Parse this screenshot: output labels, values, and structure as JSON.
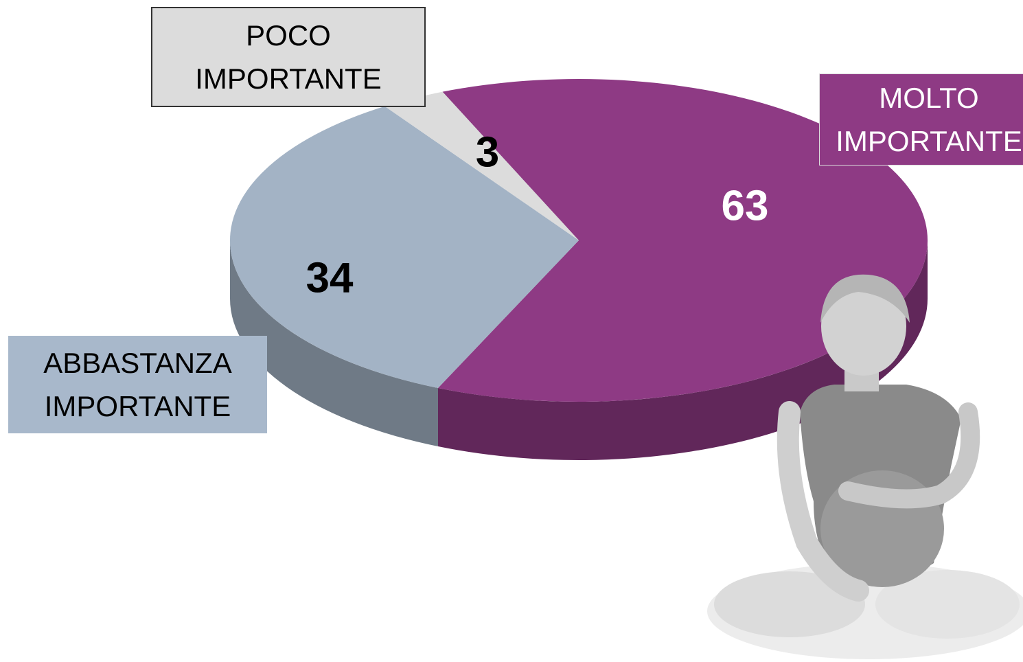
{
  "chart_data": {
    "type": "pie",
    "categories": [
      "MOLTO IMPORTANTE",
      "ABBASTANZA IMPORTANTE",
      "POCO IMPORTANTE"
    ],
    "values": [
      63,
      34,
      3
    ],
    "colors": [
      "#8e3a84",
      "#a3b3c5",
      "#dcdcdc"
    ]
  }
}
